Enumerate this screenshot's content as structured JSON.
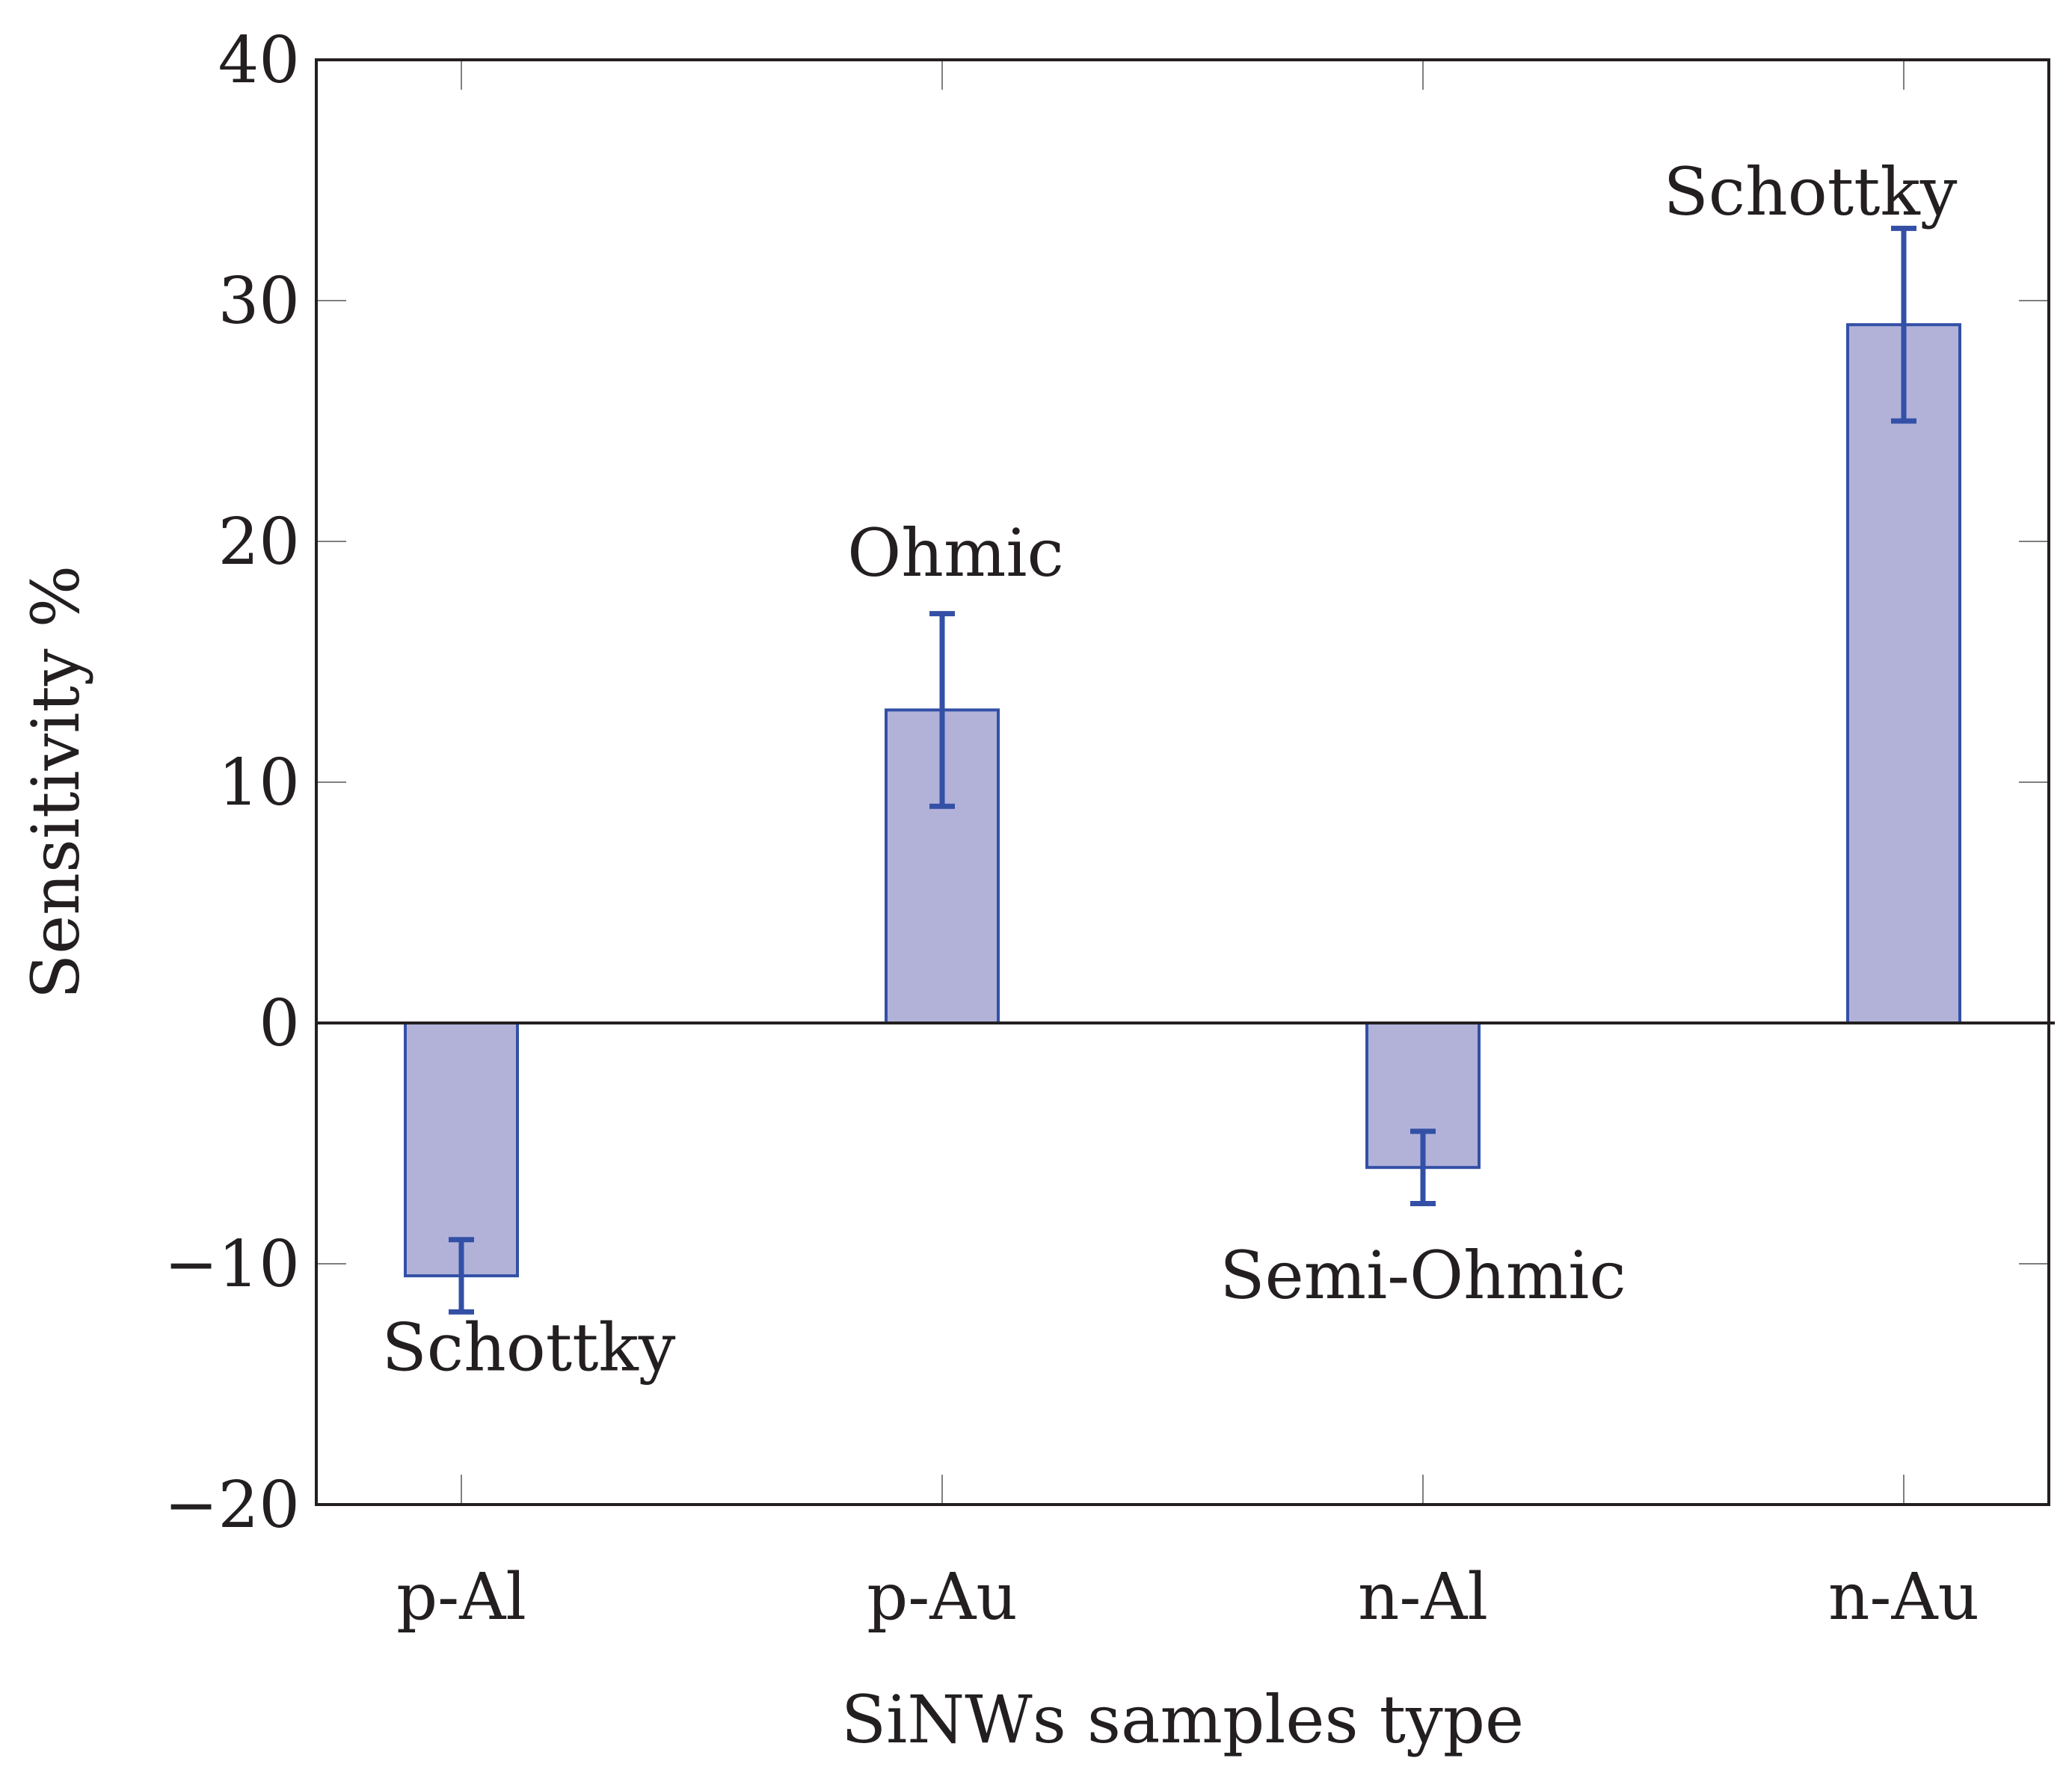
{
  "chart_data": {
    "type": "bar",
    "title": "",
    "xlabel": "SiNWs samples type",
    "ylabel": "Sensitivity %",
    "categories": [
      "p-Al",
      "p-Au",
      "n-Al",
      "n-Au"
    ],
    "values": [
      -10.5,
      13,
      -6,
      29
    ],
    "error_low": [
      -12,
      9,
      -7.5,
      25
    ],
    "error_high": [
      -9,
      17,
      -4.5,
      33
    ],
    "annotations": [
      {
        "category": "p-Al",
        "text": "Schottky",
        "value": -13.5
      },
      {
        "category": "p-Au",
        "text": "Ohmic",
        "value": 19.5
      },
      {
        "category": "n-Al",
        "text": "Semi-Ohmic",
        "value": -10.5
      },
      {
        "category": "n-Au",
        "text": "Schottky",
        "value": 34.5
      }
    ],
    "ylim": [
      -20,
      40
    ],
    "yticks": [
      -20,
      -10,
      0,
      10,
      20,
      30,
      40
    ],
    "ytick_labels": [
      "−20",
      "−10",
      "0",
      "10",
      "20",
      "30",
      "40"
    ],
    "grid": false,
    "colors": {
      "bar_fill": "#b2b2d9",
      "bar_edge": "#3350a6",
      "error_bar": "#3350a6",
      "axis": "#231f20",
      "text": "#231f20"
    }
  }
}
